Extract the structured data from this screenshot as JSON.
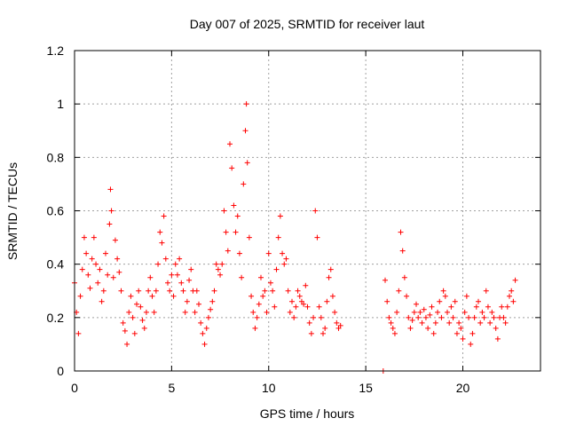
{
  "chart_data": {
    "type": "scatter",
    "title": "Day 007 of 2025, SRMTID for receiver laut",
    "xlabel": "GPS time / hours",
    "ylabel": "SRMTID / TECUs",
    "xlim": [
      0,
      24
    ],
    "ylim": [
      0,
      1.2
    ],
    "xticks": [
      0,
      5,
      10,
      15,
      20
    ],
    "yticks": [
      0,
      0.2,
      0.4,
      0.6,
      0.8,
      1,
      1.2
    ],
    "ytick_labels": [
      "0",
      "0.2",
      "0.4",
      "0.6",
      "0.8",
      "1",
      "1.2"
    ],
    "grid": true,
    "marker": "+",
    "series": [
      {
        "name": "SRMTID",
        "color": "#ff0000",
        "x": [
          0.0,
          0.1,
          0.2,
          0.3,
          0.4,
          0.5,
          0.6,
          0.7,
          0.8,
          0.9,
          1.0,
          1.1,
          1.2,
          1.3,
          1.4,
          1.5,
          1.6,
          1.7,
          1.8,
          1.85,
          1.9,
          2.0,
          2.1,
          2.2,
          2.3,
          2.4,
          2.5,
          2.6,
          2.7,
          2.8,
          2.9,
          3.0,
          3.1,
          3.2,
          3.3,
          3.4,
          3.5,
          3.6,
          3.7,
          3.8,
          3.9,
          4.0,
          4.1,
          4.2,
          4.3,
          4.4,
          4.5,
          4.6,
          4.7,
          4.8,
          4.9,
          5.0,
          5.1,
          5.2,
          5.3,
          5.4,
          5.5,
          5.6,
          5.7,
          5.8,
          5.9,
          6.0,
          6.1,
          6.2,
          6.3,
          6.4,
          6.5,
          6.6,
          6.7,
          6.8,
          6.9,
          7.0,
          7.1,
          7.2,
          7.3,
          7.4,
          7.5,
          7.6,
          7.7,
          7.8,
          7.9,
          8.0,
          8.1,
          8.2,
          8.3,
          8.4,
          8.5,
          8.6,
          8.7,
          8.8,
          8.85,
          8.9,
          9.0,
          9.1,
          9.2,
          9.3,
          9.4,
          9.5,
          9.6,
          9.7,
          9.8,
          9.9,
          10.0,
          10.1,
          10.2,
          10.3,
          10.4,
          10.5,
          10.6,
          10.7,
          10.8,
          10.9,
          11.0,
          11.1,
          11.2,
          11.3,
          11.4,
          11.5,
          11.6,
          11.7,
          11.8,
          11.9,
          12.0,
          12.1,
          12.2,
          12.3,
          12.4,
          12.5,
          12.6,
          12.7,
          12.8,
          12.9,
          13.0,
          13.1,
          13.2,
          13.3,
          13.4,
          13.5,
          13.6,
          13.7,
          15.9,
          16.0,
          16.1,
          16.2,
          16.3,
          16.4,
          16.5,
          16.6,
          16.7,
          16.8,
          16.9,
          17.0,
          17.1,
          17.2,
          17.3,
          17.4,
          17.5,
          17.6,
          17.7,
          17.8,
          17.9,
          18.0,
          18.1,
          18.2,
          18.3,
          18.4,
          18.5,
          18.6,
          18.7,
          18.8,
          18.9,
          19.0,
          19.1,
          19.2,
          19.3,
          19.4,
          19.5,
          19.6,
          19.7,
          19.8,
          19.9,
          20.0,
          20.1,
          20.2,
          20.3,
          20.4,
          20.5,
          20.6,
          20.7,
          20.8,
          20.9,
          21.0,
          21.1,
          21.2,
          21.3,
          21.4,
          21.5,
          21.6,
          21.7,
          21.8,
          21.9,
          22.0,
          22.1,
          22.2,
          22.3,
          22.4,
          22.5,
          22.6,
          22.7
        ],
        "y": [
          0.33,
          0.22,
          0.14,
          0.28,
          0.38,
          0.5,
          0.44,
          0.36,
          0.31,
          0.42,
          0.5,
          0.4,
          0.33,
          0.38,
          0.26,
          0.3,
          0.44,
          0.36,
          0.55,
          0.68,
          0.6,
          0.35,
          0.49,
          0.42,
          0.37,
          0.3,
          0.18,
          0.15,
          0.1,
          0.22,
          0.28,
          0.2,
          0.14,
          0.25,
          0.3,
          0.24,
          0.19,
          0.16,
          0.22,
          0.3,
          0.35,
          0.28,
          0.22,
          0.3,
          0.4,
          0.52,
          0.48,
          0.58,
          0.42,
          0.33,
          0.3,
          0.36,
          0.28,
          0.4,
          0.36,
          0.42,
          0.33,
          0.3,
          0.22,
          0.26,
          0.34,
          0.38,
          0.3,
          0.22,
          0.3,
          0.25,
          0.18,
          0.14,
          0.1,
          0.16,
          0.2,
          0.23,
          0.26,
          0.3,
          0.4,
          0.38,
          0.36,
          0.4,
          0.6,
          0.52,
          0.45,
          0.85,
          0.76,
          0.62,
          0.52,
          0.58,
          0.44,
          0.35,
          0.7,
          0.9,
          1.0,
          0.78,
          0.5,
          0.28,
          0.22,
          0.16,
          0.2,
          0.25,
          0.35,
          0.28,
          0.3,
          0.22,
          0.44,
          0.33,
          0.3,
          0.24,
          0.38,
          0.5,
          0.58,
          0.44,
          0.4,
          0.42,
          0.3,
          0.22,
          0.26,
          0.2,
          0.24,
          0.3,
          0.28,
          0.26,
          0.25,
          0.32,
          0.24,
          0.18,
          0.14,
          0.2,
          0.6,
          0.5,
          0.24,
          0.2,
          0.14,
          0.16,
          0.26,
          0.35,
          0.38,
          0.28,
          0.22,
          0.18,
          0.16,
          0.17,
          0.0,
          0.34,
          0.26,
          0.2,
          0.18,
          0.16,
          0.14,
          0.22,
          0.3,
          0.52,
          0.45,
          0.35,
          0.28,
          0.2,
          0.16,
          0.19,
          0.22,
          0.25,
          0.2,
          0.22,
          0.18,
          0.23,
          0.2,
          0.16,
          0.21,
          0.24,
          0.14,
          0.18,
          0.22,
          0.26,
          0.2,
          0.3,
          0.28,
          0.22,
          0.18,
          0.24,
          0.2,
          0.26,
          0.14,
          0.18,
          0.16,
          0.12,
          0.22,
          0.28,
          0.2,
          0.1,
          0.14,
          0.2,
          0.24,
          0.26,
          0.18,
          0.22,
          0.2,
          0.3,
          0.24,
          0.18,
          0.22,
          0.2,
          0.16,
          0.12,
          0.2,
          0.24,
          0.2,
          0.18,
          0.24,
          0.28,
          0.3,
          0.26,
          0.34
        ]
      }
    ]
  }
}
